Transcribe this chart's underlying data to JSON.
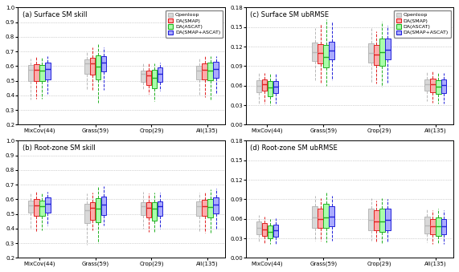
{
  "titles": [
    "(a) Surface SM skill",
    "(b) Root-zone SM skill",
    "(c) Surface SM ubRMSE",
    "(d) Root-zone SM ubRMSE"
  ],
  "categories": [
    "MixCov(44)",
    "Grass(59)",
    "Crop(29)",
    "All(135)"
  ],
  "colors": [
    "#b8b8b8",
    "#e02020",
    "#20b020",
    "#2020d8"
  ],
  "face_colors": [
    "#d8d8d8",
    "#ffaaaa",
    "#aaffaa",
    "#aaaaff"
  ],
  "legend_labels": [
    "Openloop",
    "DA(SMAP)",
    "DA(ASCAT)",
    "DA(SMAP+ASCAT)"
  ],
  "skill_ylim": [
    0.2,
    1.0
  ],
  "skill_yticks": [
    0.2,
    0.3,
    0.4,
    0.5,
    0.6,
    0.7,
    0.8,
    0.9,
    1.0
  ],
  "ubrmse_ylim": [
    0.0,
    0.18
  ],
  "ubrmse_yticks": [
    0.0,
    0.03,
    0.06,
    0.09,
    0.12,
    0.15,
    0.18
  ],
  "panels": {
    "a_skill_surface": {
      "MixCov": {
        "openloop": {
          "whislo": 0.37,
          "q1": 0.5,
          "med": 0.575,
          "q3": 0.605,
          "whishi": 0.65
        },
        "smap": {
          "whislo": 0.38,
          "q1": 0.5,
          "med": 0.575,
          "q3": 0.615,
          "whishi": 0.67
        },
        "ascat": {
          "whislo": 0.38,
          "q1": 0.5,
          "med": 0.57,
          "q3": 0.61,
          "whishi": 0.66
        },
        "both": {
          "whislo": 0.41,
          "q1": 0.51,
          "med": 0.578,
          "q3": 0.625,
          "whishi": 0.668
        }
      },
      "Grass": {
        "openloop": {
          "whislo": 0.44,
          "q1": 0.545,
          "med": 0.62,
          "q3": 0.645,
          "whishi": 0.7
        },
        "smap": {
          "whislo": 0.43,
          "q1": 0.54,
          "med": 0.618,
          "q3": 0.655,
          "whishi": 0.73
        },
        "ascat": {
          "whislo": 0.35,
          "q1": 0.51,
          "med": 0.598,
          "q3": 0.675,
          "whishi": 0.75
        },
        "both": {
          "whislo": 0.44,
          "q1": 0.562,
          "med": 0.622,
          "q3": 0.668,
          "whishi": 0.73
        }
      },
      "Crop": {
        "openloop": {
          "whislo": 0.44,
          "q1": 0.492,
          "med": 0.545,
          "q3": 0.572,
          "whishi": 0.62
        },
        "smap": {
          "whislo": 0.41,
          "q1": 0.468,
          "med": 0.538,
          "q3": 0.572,
          "whishi": 0.62
        },
        "ascat": {
          "whislo": 0.36,
          "q1": 0.448,
          "med": 0.518,
          "q3": 0.575,
          "whishi": 0.62
        },
        "both": {
          "whislo": 0.43,
          "q1": 0.492,
          "med": 0.548,
          "q3": 0.59,
          "whishi": 0.626
        }
      },
      "All": {
        "openloop": {
          "whislo": 0.4,
          "q1": 0.508,
          "med": 0.572,
          "q3": 0.604,
          "whishi": 0.654
        },
        "smap": {
          "whislo": 0.39,
          "q1": 0.508,
          "med": 0.574,
          "q3": 0.618,
          "whishi": 0.668
        },
        "ascat": {
          "whislo": 0.37,
          "q1": 0.502,
          "med": 0.568,
          "q3": 0.624,
          "whishi": 0.668
        },
        "both": {
          "whislo": 0.41,
          "q1": 0.518,
          "med": 0.578,
          "q3": 0.628,
          "whishi": 0.668
        }
      }
    },
    "b_skill_rootzone": {
      "MixCov": {
        "openloop": {
          "whislo": 0.4,
          "q1": 0.51,
          "med": 0.558,
          "q3": 0.59,
          "whishi": 0.645
        },
        "smap": {
          "whislo": 0.38,
          "q1": 0.488,
          "med": 0.558,
          "q3": 0.6,
          "whishi": 0.655
        },
        "ascat": {
          "whislo": 0.39,
          "q1": 0.488,
          "med": 0.552,
          "q3": 0.592,
          "whishi": 0.645
        },
        "both": {
          "whislo": 0.42,
          "q1": 0.508,
          "med": 0.568,
          "q3": 0.614,
          "whishi": 0.65
        }
      },
      "Grass": {
        "openloop": {
          "whislo": 0.29,
          "q1": 0.438,
          "med": 0.528,
          "q3": 0.568,
          "whishi": 0.642
        },
        "smap": {
          "whislo": 0.39,
          "q1": 0.462,
          "med": 0.542,
          "q3": 0.582,
          "whishi": 0.648
        },
        "ascat": {
          "whislo": 0.3,
          "q1": 0.442,
          "med": 0.538,
          "q3": 0.608,
          "whishi": 0.692
        },
        "both": {
          "whislo": 0.42,
          "q1": 0.492,
          "med": 0.562,
          "q3": 0.618,
          "whishi": 0.692
        }
      },
      "Crop": {
        "openloop": {
          "whislo": 0.4,
          "q1": 0.492,
          "med": 0.552,
          "q3": 0.582,
          "whishi": 0.652
        },
        "smap": {
          "whislo": 0.38,
          "q1": 0.478,
          "med": 0.542,
          "q3": 0.578,
          "whishi": 0.638
        },
        "ascat": {
          "whislo": 0.38,
          "q1": 0.452,
          "med": 0.538,
          "q3": 0.578,
          "whishi": 0.648
        },
        "both": {
          "whislo": 0.4,
          "q1": 0.488,
          "med": 0.552,
          "q3": 0.588,
          "whishi": 0.648
        }
      },
      "All": {
        "openloop": {
          "whislo": 0.38,
          "q1": 0.488,
          "med": 0.552,
          "q3": 0.588,
          "whishi": 0.648
        },
        "smap": {
          "whislo": 0.37,
          "q1": 0.488,
          "med": 0.552,
          "q3": 0.598,
          "whishi": 0.652
        },
        "ascat": {
          "whislo": 0.37,
          "q1": 0.478,
          "med": 0.548,
          "q3": 0.602,
          "whishi": 0.668
        },
        "both": {
          "whislo": 0.4,
          "q1": 0.502,
          "med": 0.562,
          "q3": 0.612,
          "whishi": 0.672
        }
      }
    },
    "c_ubrmse_surface": {
      "MixCov": {
        "openloop": {
          "whislo": 0.033,
          "q1": 0.05,
          "med": 0.06,
          "q3": 0.068,
          "whishi": 0.08
        },
        "smap": {
          "whislo": 0.032,
          "q1": 0.052,
          "med": 0.062,
          "q3": 0.07,
          "whishi": 0.08
        },
        "ascat": {
          "whislo": 0.03,
          "q1": 0.044,
          "med": 0.057,
          "q3": 0.067,
          "whishi": 0.078
        },
        "both": {
          "whislo": 0.032,
          "q1": 0.048,
          "med": 0.059,
          "q3": 0.067,
          "whishi": 0.078
        }
      },
      "Grass": {
        "openloop": {
          "whislo": 0.068,
          "q1": 0.098,
          "med": 0.112,
          "q3": 0.126,
          "whishi": 0.148
        },
        "smap": {
          "whislo": 0.065,
          "q1": 0.094,
          "med": 0.11,
          "q3": 0.124,
          "whishi": 0.155
        },
        "ascat": {
          "whislo": 0.06,
          "q1": 0.088,
          "med": 0.104,
          "q3": 0.122,
          "whishi": 0.162
        },
        "both": {
          "whislo": 0.068,
          "q1": 0.1,
          "med": 0.114,
          "q3": 0.128,
          "whishi": 0.158
        }
      },
      "Crop": {
        "openloop": {
          "whislo": 0.064,
          "q1": 0.095,
          "med": 0.11,
          "q3": 0.125,
          "whishi": 0.148
        },
        "smap": {
          "whislo": 0.063,
          "q1": 0.092,
          "med": 0.108,
          "q3": 0.122,
          "whishi": 0.144
        },
        "ascat": {
          "whislo": 0.058,
          "q1": 0.09,
          "med": 0.112,
          "q3": 0.132,
          "whishi": 0.158
        },
        "both": {
          "whislo": 0.065,
          "q1": 0.1,
          "med": 0.115,
          "q3": 0.132,
          "whishi": 0.152
        }
      },
      "All": {
        "openloop": {
          "whislo": 0.036,
          "q1": 0.052,
          "med": 0.062,
          "q3": 0.07,
          "whishi": 0.082
        },
        "smap": {
          "whislo": 0.034,
          "q1": 0.05,
          "med": 0.062,
          "q3": 0.071,
          "whishi": 0.082
        },
        "ascat": {
          "whislo": 0.032,
          "q1": 0.047,
          "med": 0.059,
          "q3": 0.068,
          "whishi": 0.08
        },
        "both": {
          "whislo": 0.033,
          "q1": 0.049,
          "med": 0.061,
          "q3": 0.069,
          "whishi": 0.08
        }
      }
    },
    "d_ubrmse_rootzone": {
      "MixCov": {
        "openloop": {
          "whislo": 0.024,
          "q1": 0.036,
          "med": 0.046,
          "q3": 0.056,
          "whishi": 0.066
        },
        "smap": {
          "whislo": 0.022,
          "q1": 0.034,
          "med": 0.044,
          "q3": 0.053,
          "whishi": 0.063
        },
        "ascat": {
          "whislo": 0.021,
          "q1": 0.03,
          "med": 0.04,
          "q3": 0.05,
          "whishi": 0.06
        },
        "both": {
          "whislo": 0.022,
          "q1": 0.033,
          "med": 0.042,
          "q3": 0.051,
          "whishi": 0.061
        }
      },
      "Grass": {
        "openloop": {
          "whislo": 0.026,
          "q1": 0.046,
          "med": 0.062,
          "q3": 0.08,
          "whishi": 0.096
        },
        "smap": {
          "whislo": 0.026,
          "q1": 0.046,
          "med": 0.06,
          "q3": 0.076,
          "whishi": 0.092
        },
        "ascat": {
          "whislo": 0.024,
          "q1": 0.046,
          "med": 0.062,
          "q3": 0.083,
          "whishi": 0.1
        },
        "both": {
          "whislo": 0.026,
          "q1": 0.048,
          "med": 0.064,
          "q3": 0.08,
          "whishi": 0.096
        }
      },
      "Crop": {
        "openloop": {
          "whislo": 0.026,
          "q1": 0.043,
          "med": 0.058,
          "q3": 0.076,
          "whishi": 0.092
        },
        "smap": {
          "whislo": 0.024,
          "q1": 0.042,
          "med": 0.056,
          "q3": 0.073,
          "whishi": 0.088
        },
        "ascat": {
          "whislo": 0.023,
          "q1": 0.04,
          "med": 0.056,
          "q3": 0.076,
          "whishi": 0.092
        },
        "both": {
          "whislo": 0.024,
          "q1": 0.043,
          "med": 0.058,
          "q3": 0.076,
          "whishi": 0.09
        }
      },
      "All": {
        "openloop": {
          "whislo": 0.024,
          "q1": 0.038,
          "med": 0.05,
          "q3": 0.063,
          "whishi": 0.076
        },
        "smap": {
          "whislo": 0.022,
          "q1": 0.036,
          "med": 0.048,
          "q3": 0.06,
          "whishi": 0.073
        },
        "ascat": {
          "whislo": 0.021,
          "q1": 0.034,
          "med": 0.048,
          "q3": 0.062,
          "whishi": 0.076
        },
        "both": {
          "whislo": 0.022,
          "q1": 0.036,
          "med": 0.048,
          "q3": 0.06,
          "whishi": 0.073
        }
      }
    }
  }
}
